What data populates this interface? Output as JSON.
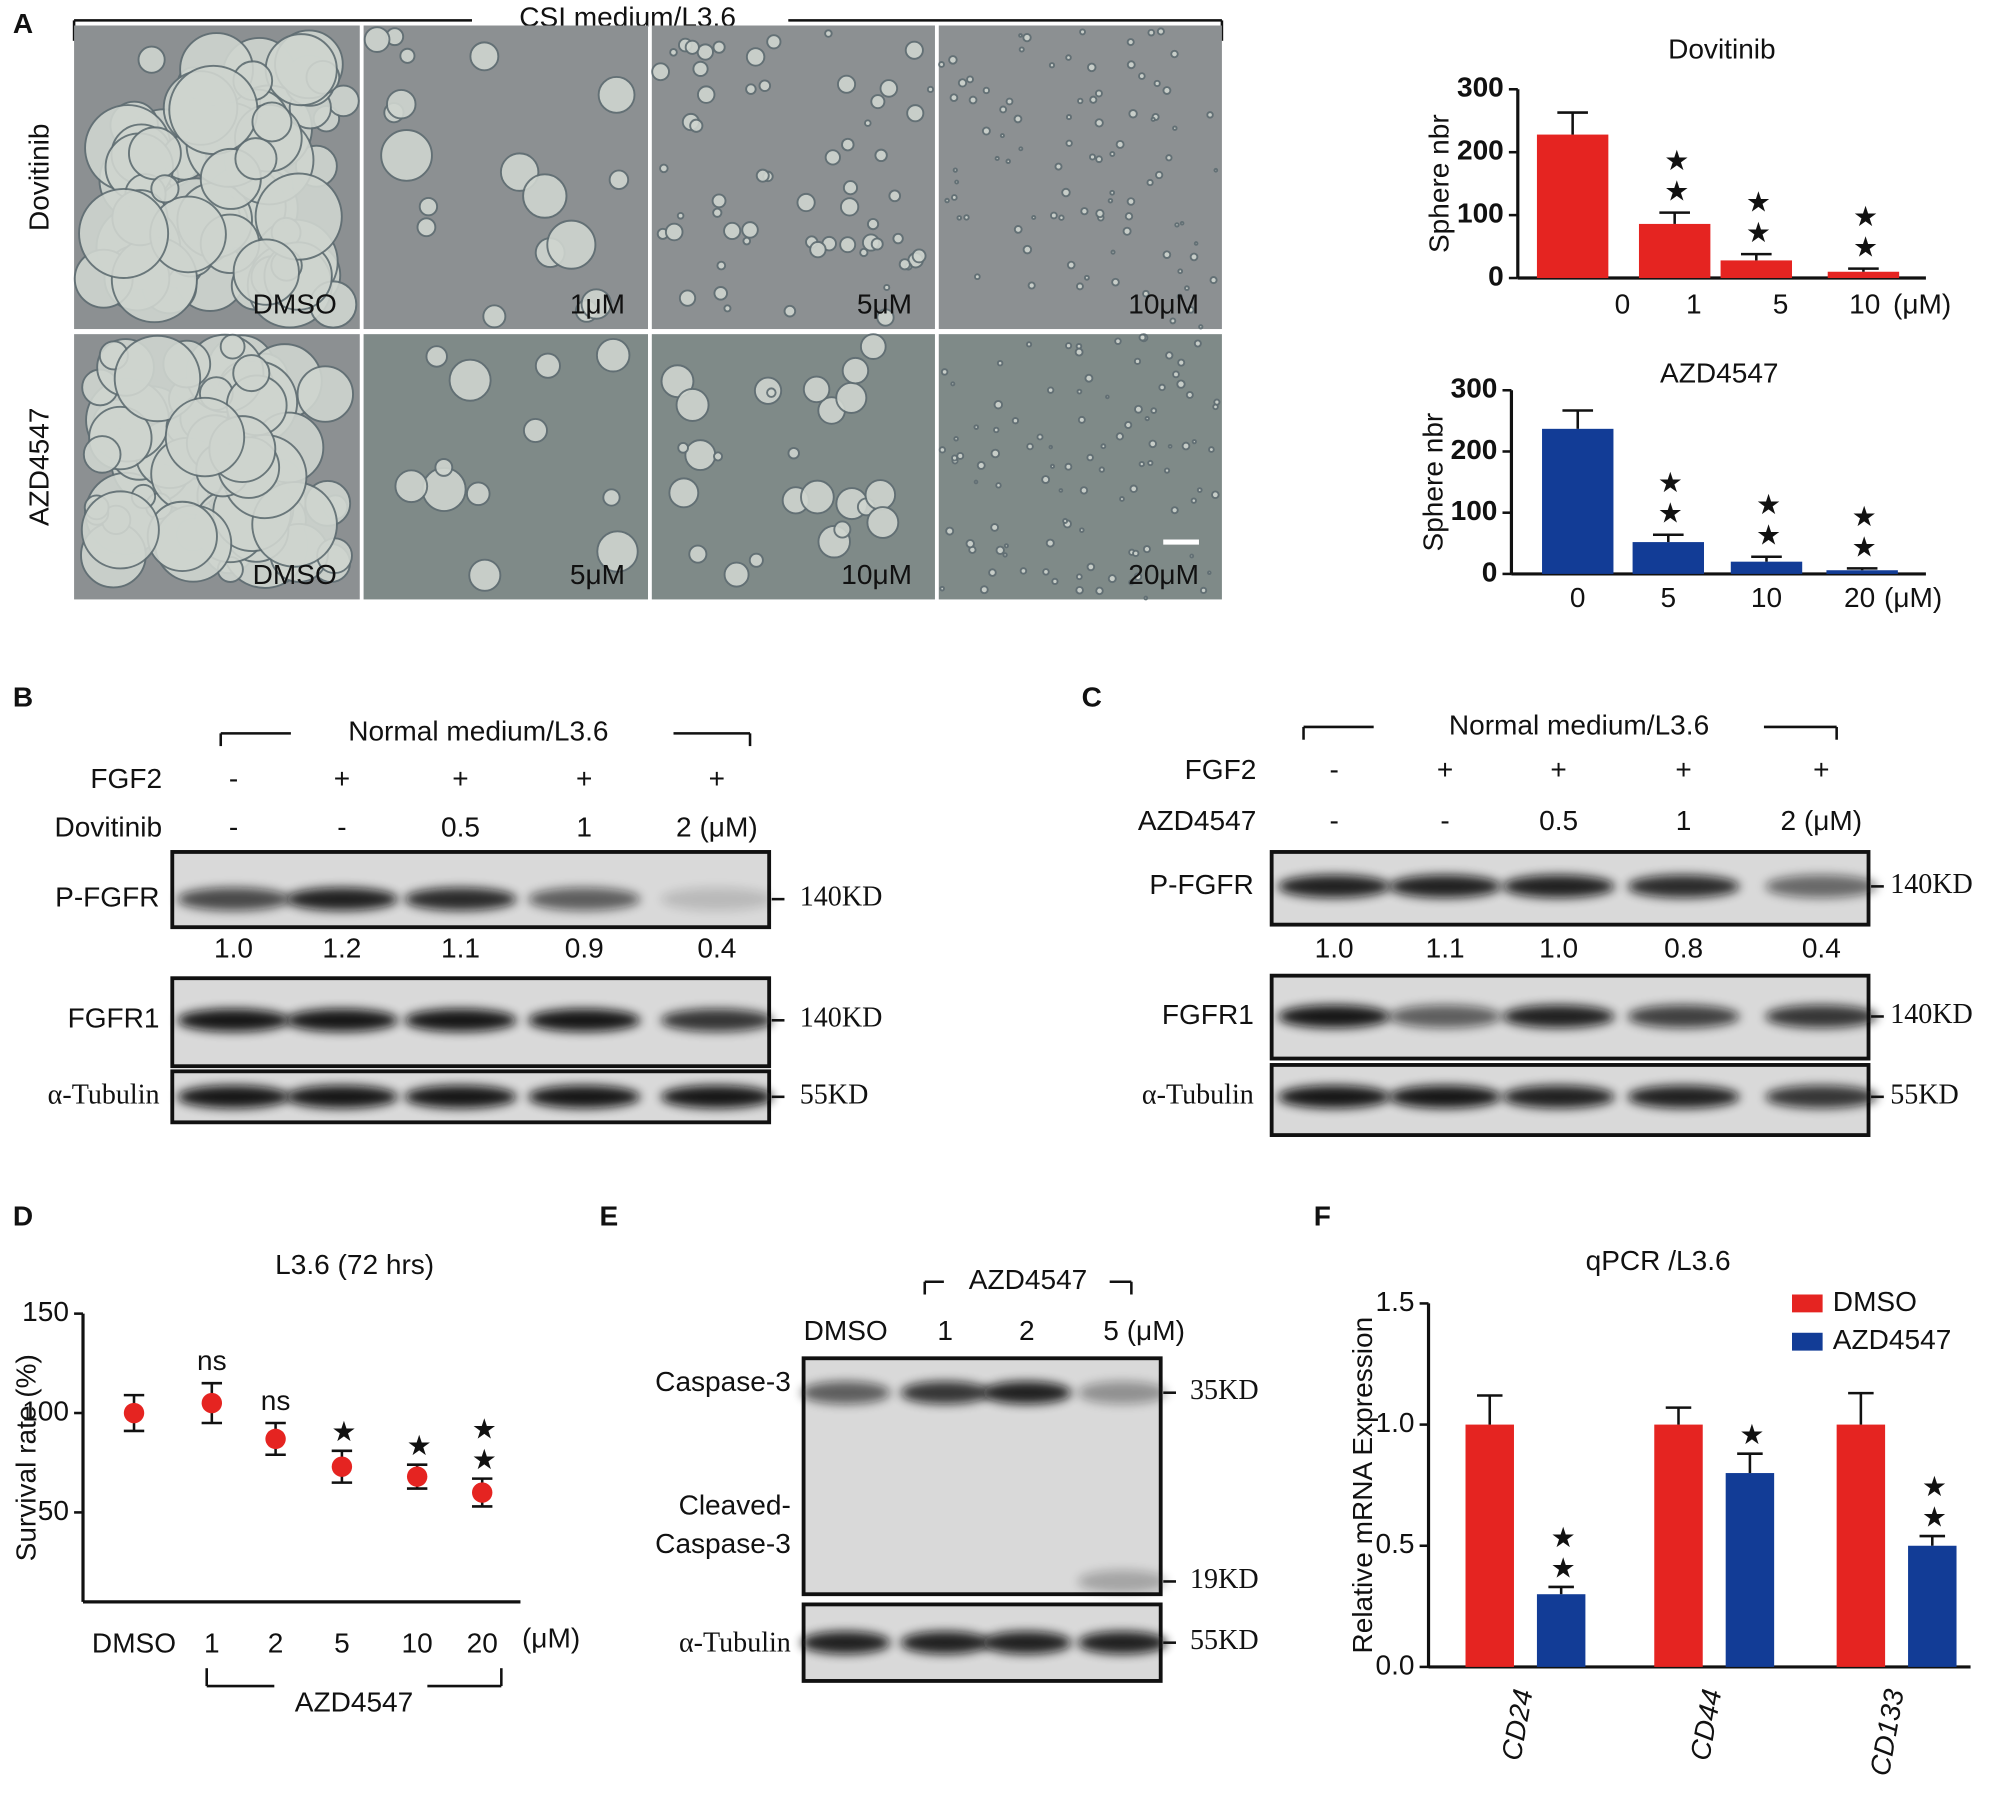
{
  "panel_labels": [
    "A",
    "B",
    "C",
    "D",
    "E",
    "F"
  ],
  "micrographs": {
    "title": "CSI medium/L3.6",
    "rows": [
      {
        "label": "Dovitinib",
        "cells": [
          "DMSO",
          "1μM",
          "5μM",
          "10μM"
        ]
      },
      {
        "label": "AZD4547",
        "cells": [
          "DMSO",
          "5μM",
          "10μM",
          "20μM"
        ]
      }
    ]
  },
  "chart_data": [
    {
      "type": "bar",
      "title": "Dovitinib",
      "ylabel": "Sphere nbr",
      "categories": [
        "0",
        "1",
        "5",
        "10"
      ],
      "x_unit": "(μM)",
      "values": [
        228,
        86,
        28,
        10
      ],
      "errors": [
        35,
        18,
        10,
        5
      ],
      "significance": [
        null,
        "★★",
        "★★",
        "★★"
      ],
      "color": "#e52421",
      "ylim": [
        0,
        300
      ],
      "yticks": [
        0,
        100,
        200,
        300
      ]
    },
    {
      "type": "bar",
      "title": "AZD4547",
      "ylabel": "Sphere nbr",
      "categories": [
        "0",
        "5",
        "10",
        "20"
      ],
      "x_unit": "(μM)",
      "values": [
        237,
        52,
        20,
        6
      ],
      "errors": [
        30,
        12,
        8,
        3
      ],
      "significance": [
        null,
        "★★",
        "★★",
        "★★"
      ],
      "color": "#123c96",
      "ylim": [
        0,
        300
      ],
      "yticks": [
        0,
        100,
        200,
        300
      ]
    },
    {
      "type": "dot",
      "title": "L3.6  (72 hrs)",
      "ylabel": "Survival rate (%)",
      "categories": [
        "DMSO",
        "1",
        "2",
        "5",
        "10",
        "20"
      ],
      "x_unit": "(μM)",
      "group_label": "AZD4547",
      "values": [
        100,
        105,
        87,
        73,
        68,
        60
      ],
      "errors": [
        9,
        10,
        8,
        8,
        6,
        7
      ],
      "significance": [
        null,
        "ns",
        "ns",
        "★",
        "★",
        "★★"
      ],
      "color": "#e52421",
      "ylim": [
        5,
        150
      ],
      "yticks": [
        50,
        100,
        150
      ]
    },
    {
      "type": "grouped_bar",
      "title": "qPCR /L3.6",
      "ylabel": "Relative mRNA Expression",
      "categories": [
        "CD24",
        "CD44",
        "CD133"
      ],
      "series": [
        {
          "name": "DMSO",
          "color": "#e52421",
          "values": [
            1.0,
            1.0,
            1.0
          ],
          "errors": [
            0.12,
            0.07,
            0.13
          ]
        },
        {
          "name": "AZD4547",
          "color": "#123c96",
          "values": [
            0.3,
            0.8,
            0.5
          ],
          "errors": [
            0.03,
            0.08,
            0.04
          ],
          "significance": [
            "★★",
            "★",
            "★★"
          ]
        }
      ],
      "ylim": [
        0,
        1.5
      ],
      "yticks": [
        {
          "value": 0,
          "label": "0.0"
        },
        {
          "value": 0.5,
          "label": "0.5"
        },
        {
          "value": 1,
          "label": "1.0"
        },
        {
          "value": 1.5,
          "label": "1.5"
        }
      ],
      "legend": "upper right"
    }
  ],
  "blots": [
    {
      "title": "Normal medium/L3.6",
      "conditions": [
        {
          "label": "FGF2",
          "values": [
            "-",
            "+",
            "+",
            "+",
            "+"
          ]
        },
        {
          "label": "Dovitinib",
          "values": [
            "-",
            "-",
            "0.5",
            "1",
            "2 (μM)"
          ]
        }
      ],
      "bands": [
        {
          "label": "P-FGFR",
          "size": "140KD",
          "quantification": [
            "1.0",
            "1.2",
            "1.1",
            "0.9",
            "0.4"
          ]
        },
        {
          "label": "FGFR1",
          "size": "140KD"
        },
        {
          "label": "α-Tubulin",
          "size": "55KD"
        }
      ]
    },
    {
      "title": "Normal medium/L3.6",
      "conditions": [
        {
          "label": "FGF2",
          "values": [
            "-",
            "+",
            "+",
            "+",
            "+"
          ]
        },
        {
          "label": "AZD4547",
          "values": [
            "-",
            "-",
            "0.5",
            "1",
            "2 (μM)"
          ]
        }
      ],
      "bands": [
        {
          "label": "P-FGFR",
          "size": "140KD",
          "quantification": [
            "1.0",
            "1.1",
            "1.0",
            "0.8",
            "0.4"
          ]
        },
        {
          "label": "FGFR1",
          "size": "140KD"
        },
        {
          "label": "α-Tubulin",
          "size": "55KD"
        }
      ]
    },
    {
      "title": "AZD4547",
      "lanes": [
        "DMSO",
        "1",
        "2",
        "5 (μM)"
      ],
      "bands": [
        {
          "label": "Caspase-3",
          "size": "35KD"
        },
        {
          "label": [
            "Cleaved-",
            "Caspase-3"
          ],
          "size": "19KD"
        },
        {
          "label": "α-Tubulin",
          "size": "55KD"
        }
      ]
    }
  ]
}
